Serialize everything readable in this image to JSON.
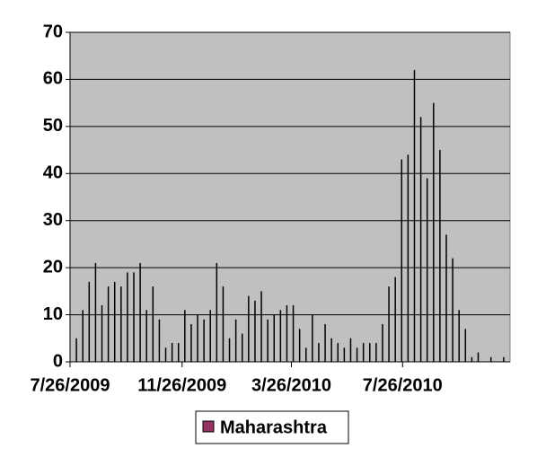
{
  "chart_data": {
    "type": "bar",
    "series": [
      {
        "name": "Maharashtra",
        "color": "#993366",
        "values": [
          5,
          11,
          17,
          21,
          12,
          16,
          17,
          16,
          19,
          19,
          21,
          11,
          16,
          9,
          3,
          4,
          4,
          11,
          8,
          10,
          9,
          11,
          21,
          16,
          5,
          9,
          6,
          14,
          13,
          15,
          9,
          10,
          11,
          12,
          12,
          7,
          3,
          10,
          4,
          8,
          5,
          4,
          3,
          5,
          3,
          4,
          4,
          4,
          8,
          16,
          18,
          43,
          44,
          62,
          52,
          39,
          55,
          45,
          27,
          22,
          11,
          7,
          1,
          2,
          0,
          1,
          0,
          1
        ]
      }
    ],
    "x": [
      "2009-08-02",
      "2009-08-09",
      "2009-08-16",
      "2009-08-23",
      "2009-08-30",
      "2009-09-06",
      "2009-09-13",
      "2009-09-20",
      "2009-09-27",
      "2009-10-04",
      "2009-10-11",
      "2009-10-18",
      "2009-10-25",
      "2009-11-01",
      "2009-11-08",
      "2009-11-15",
      "2009-11-22",
      "2009-11-29",
      "2009-12-06",
      "2009-12-13",
      "2009-12-20",
      "2009-12-27",
      "2010-01-03",
      "2010-01-10",
      "2010-01-17",
      "2010-01-24",
      "2010-01-31",
      "2010-02-07",
      "2010-02-14",
      "2010-02-21",
      "2010-02-28",
      "2010-03-07",
      "2010-03-14",
      "2010-03-21",
      "2010-03-28",
      "2010-04-04",
      "2010-04-11",
      "2010-04-18",
      "2010-04-25",
      "2010-05-02",
      "2010-05-09",
      "2010-05-16",
      "2010-05-23",
      "2010-05-30",
      "2010-06-06",
      "2010-06-13",
      "2010-06-20",
      "2010-06-27",
      "2010-07-04",
      "2010-07-11",
      "2010-07-18",
      "2010-07-25",
      "2010-08-01",
      "2010-08-08",
      "2010-08-15",
      "2010-08-22",
      "2010-08-29",
      "2010-09-05",
      "2010-09-12",
      "2010-09-19",
      "2010-09-26",
      "2010-10-03",
      "2010-10-10",
      "2010-10-17",
      "2010-10-24",
      "2010-10-31",
      "2010-11-07",
      "2010-11-14"
    ],
    "xlim": [
      "2009-07-26",
      "2010-11-21"
    ],
    "xticks": [
      {
        "value": "2009-07-26",
        "label": "7/26/2009"
      },
      {
        "value": "2009-11-26",
        "label": "11/26/2009"
      },
      {
        "value": "2010-03-26",
        "label": "3/26/2010"
      },
      {
        "value": "2010-07-26",
        "label": "7/26/2010"
      }
    ],
    "ylim": [
      0,
      70
    ],
    "yticks": [
      0,
      10,
      20,
      30,
      40,
      50,
      60,
      70
    ],
    "grid": true,
    "bar_color": "#000000",
    "plot_background": "#c0c0c0",
    "legend": "bottom"
  }
}
